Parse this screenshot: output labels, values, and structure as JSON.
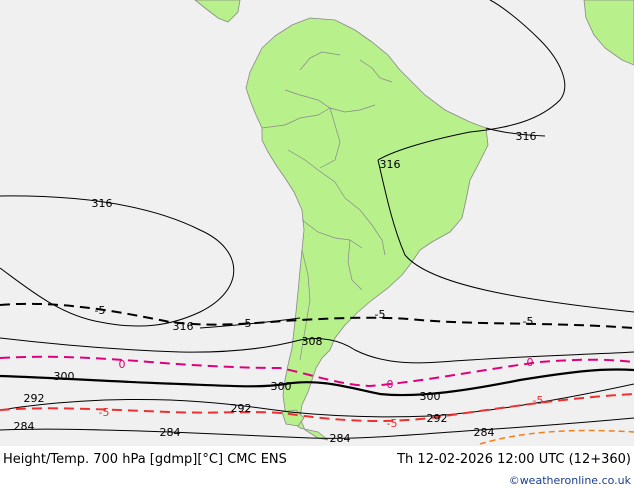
{
  "footer": {
    "title": "Height/Temp. 700 hPa [gdmp][°C] CMC ENS",
    "valid_time": "Th 12-02-2026 12:00 UTC (12+360)",
    "credit": "©weatheronline.co.uk"
  },
  "colors": {
    "ocean": "#f0f0f0",
    "land": "#b8f08c",
    "border": "#888888",
    "height_contour": "#000000",
    "temp_zero": "#e0007a",
    "temp_minus5": "#ee3030",
    "temp_warm": "#f08020"
  },
  "height_labels": [
    "316",
    "316",
    "316",
    "316",
    "308",
    "300",
    "300",
    "300",
    "292",
    "292",
    "292",
    "284",
    "284",
    "284",
    "284"
  ],
  "temp_labels": [
    "-5",
    "-5",
    "-5",
    "-5",
    "0",
    "0",
    "0",
    "-5",
    "-5",
    "-5"
  ]
}
